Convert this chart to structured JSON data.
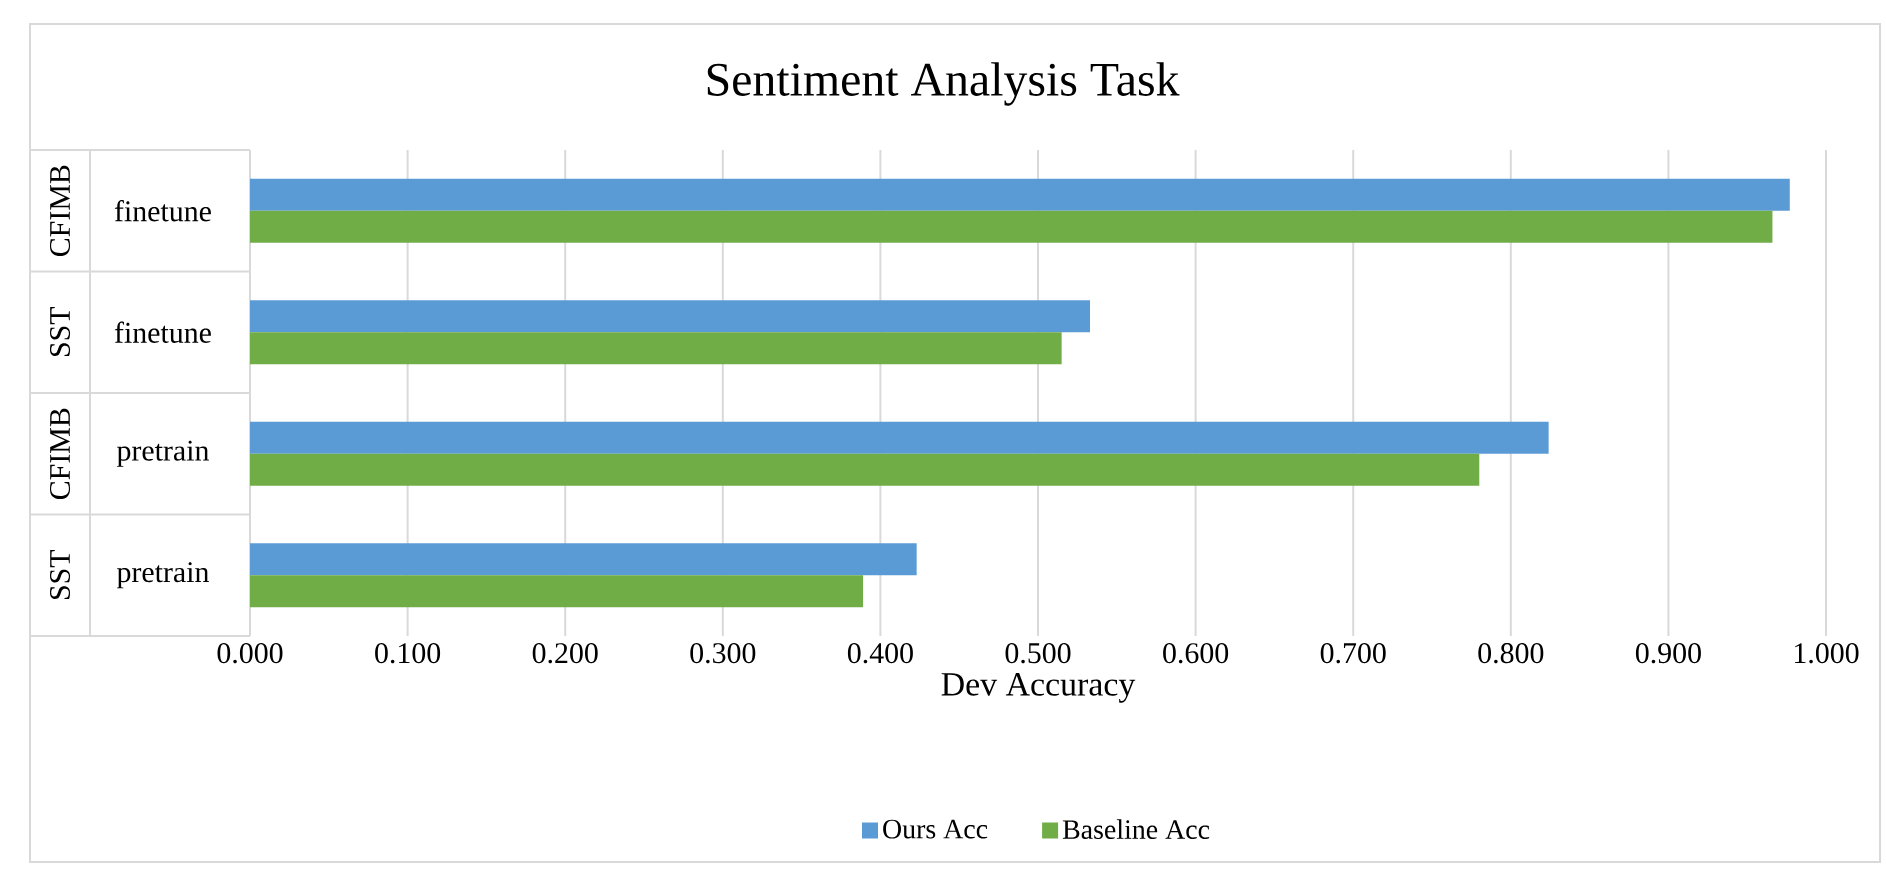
{
  "chart_data": {
    "type": "bar",
    "orientation": "horizontal",
    "title": "Sentiment Analysis Task",
    "xlabel": "Dev Accuracy",
    "categories": [
      "finetune",
      "finetune",
      "pretrain",
      "pretrain"
    ],
    "annotations": [
      "CFIMB",
      "SST",
      "CFIMB",
      "SST"
    ],
    "series": [
      {
        "name": "Ours Acc",
        "color": "#5b9bd5",
        "values": [
          0.977,
          0.533,
          0.824,
          0.423
        ]
      },
      {
        "name": "Baseline Acc",
        "color": "#70ad47",
        "values": [
          0.966,
          0.515,
          0.78,
          0.389
        ]
      }
    ],
    "xlim": [
      0,
      1
    ],
    "xticks": [
      {
        "value": 0,
        "label": "0.000"
      },
      {
        "value": 0.1,
        "label": "0.100"
      },
      {
        "value": 0.2,
        "label": "0.200"
      },
      {
        "value": 0.3,
        "label": "0.300"
      },
      {
        "value": 0.4,
        "label": "0.400"
      },
      {
        "value": 0.5,
        "label": "0.500"
      },
      {
        "value": 0.6,
        "label": "0.600"
      },
      {
        "value": 0.7,
        "label": "0.700"
      },
      {
        "value": 0.8,
        "label": "0.800"
      },
      {
        "value": 0.9,
        "label": "0.900"
      },
      {
        "value": 1,
        "label": "1.000"
      }
    ],
    "grid": "x",
    "legend": "bottom"
  }
}
